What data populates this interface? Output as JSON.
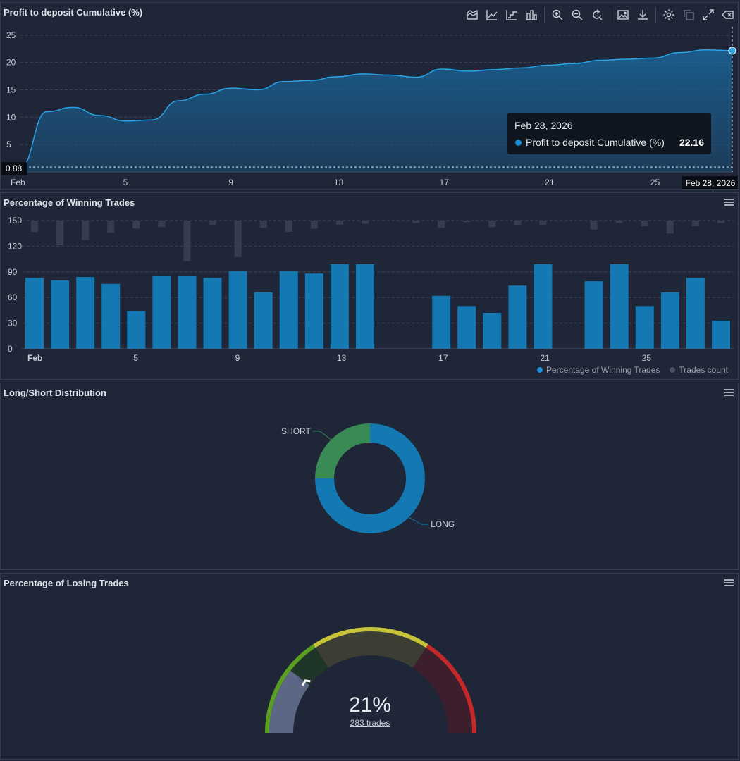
{
  "panels": {
    "profit": {
      "title": "Profit to deposit Cumulative (%)",
      "toolbar_icons": [
        "area-chart-icon",
        "line-chart-icon",
        "step-line-icon",
        "bar-chart-icon",
        "zoom-in-icon",
        "zoom-out-icon",
        "reset-zoom-icon",
        "image-export-icon",
        "download-icon",
        "settings-icon",
        "copy-icon",
        "expand-icon",
        "clear-icon"
      ],
      "tooltip": {
        "date": "Feb 28, 2026",
        "series": "Profit to deposit Cumulative (%)",
        "value": "22.16"
      },
      "crosshair_y_label": "0.88",
      "crosshair_x_label": "Feb 28, 2026"
    },
    "winning": {
      "title": "Percentage of Winning Trades",
      "legend": [
        "Percentage of Winning Trades",
        "Trades count"
      ]
    },
    "longshort": {
      "title": "Long/Short Distribution"
    },
    "losing": {
      "title": "Percentage of Losing Trades",
      "value_text": "21%",
      "trades_text": "283 trades",
      "value": 21
    }
  },
  "colors": {
    "accent": "#1a8fd6",
    "bar": "#1478b3",
    "green": "#3a8a55",
    "grid": "#3a4456",
    "gauge_green": "#5a9e22",
    "gauge_yellow": "#c7c43a",
    "gauge_red": "#c42828"
  },
  "chart_data": [
    {
      "type": "area",
      "title": "Profit to deposit Cumulative (%)",
      "x": [
        "Feb 1",
        "Feb 2",
        "Feb 3",
        "Feb 4",
        "Feb 5",
        "Feb 6",
        "Feb 7",
        "Feb 8",
        "Feb 9",
        "Feb 10",
        "Feb 11",
        "Feb 12",
        "Feb 13",
        "Feb 14",
        "Feb 15",
        "Feb 16",
        "Feb 17",
        "Feb 18",
        "Feb 19",
        "Feb 20",
        "Feb 21",
        "Feb 22",
        "Feb 23",
        "Feb 24",
        "Feb 25",
        "Feb 26",
        "Feb 27",
        "Feb 28"
      ],
      "values": [
        0.88,
        11.0,
        11.8,
        10.3,
        9.3,
        9.5,
        13.0,
        14.2,
        15.3,
        15.0,
        16.5,
        16.7,
        17.4,
        17.9,
        17.7,
        17.3,
        18.8,
        18.4,
        18.7,
        19.0,
        19.5,
        19.8,
        20.4,
        20.6,
        20.8,
        21.8,
        22.3,
        22.16
      ],
      "ylim": [
        0,
        26
      ],
      "yticks": [
        5,
        10,
        15,
        20,
        25
      ],
      "xtick_labels": [
        "Feb",
        "5",
        "9",
        "13",
        "17",
        "21",
        "25"
      ],
      "xtick_index": [
        0,
        4,
        8,
        12,
        16,
        20,
        24
      ]
    },
    {
      "type": "bar",
      "title": "Percentage of Winning Trades",
      "categories": [
        "Feb 1",
        "Feb 2",
        "Feb 3",
        "Feb 4",
        "Feb 5",
        "Feb 6",
        "Feb 7",
        "Feb 8",
        "Feb 9",
        "Feb 10",
        "Feb 11",
        "Feb 12",
        "Feb 13",
        "Feb 14",
        "Feb 15",
        "Feb 16",
        "Feb 17",
        "Feb 18",
        "Feb 19",
        "Feb 20",
        "Feb 21",
        "Feb 22",
        "Feb 23",
        "Feb 24",
        "Feb 25",
        "Feb 26",
        "Feb 27",
        "Feb 28"
      ],
      "series": [
        {
          "name": "Percentage of Winning Trades",
          "values": [
            83,
            80,
            84,
            76,
            44,
            85,
            85,
            83,
            91,
            66,
            91,
            88,
            99,
            99,
            0,
            0,
            62,
            50,
            42,
            74,
            99,
            0,
            79,
            99,
            50,
            66,
            83,
            33
          ]
        },
        {
          "name": "Trades count",
          "values": [
            14,
            30,
            24,
            15,
            10,
            8,
            50,
            6,
            45,
            9,
            14,
            10,
            5,
            4,
            0,
            3,
            9,
            2,
            8,
            6,
            6,
            0,
            11,
            3,
            7,
            16,
            7,
            3
          ]
        }
      ],
      "ylim": [
        0,
        150
      ],
      "yticks": [
        0,
        30,
        60,
        90,
        120,
        150
      ],
      "xtick_labels": [
        "Feb",
        "5",
        "9",
        "13",
        "17",
        "21",
        "25"
      ],
      "xtick_index": [
        0,
        4,
        8,
        12,
        16,
        20,
        24
      ]
    },
    {
      "type": "pie",
      "title": "Long/Short Distribution",
      "labels": [
        "LONG",
        "SHORT"
      ],
      "values": [
        75,
        25
      ]
    }
  ]
}
